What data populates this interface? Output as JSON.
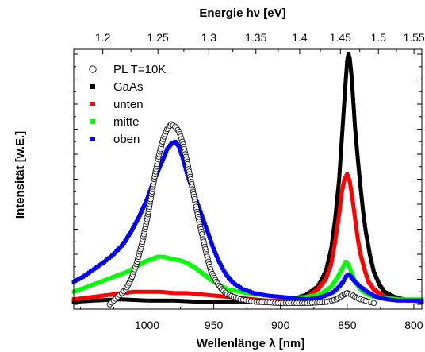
{
  "chart_data": {
    "type": "scatter",
    "xlabel": "Wellenlänge λ [nm]",
    "ylabel": "Intensität [w.E.]",
    "top_axis_label": "Energie hν [eV]",
    "xlim": [
      1055,
      794
    ],
    "x_reversed": true,
    "x_ticks": [
      1000,
      950,
      900,
      850,
      800
    ],
    "x_tick_labels": [
      "1000",
      "950",
      "900",
      "850",
      "800"
    ],
    "top_ticks_ev": [
      1.2,
      1.25,
      1.3,
      1.35,
      1.4,
      1.45,
      1.5,
      1.55
    ],
    "top_tick_labels": [
      "1.2",
      "1.25",
      "1.3",
      "1.35",
      "1.4",
      "1.45",
      "1.5",
      "1.55"
    ],
    "ylim": [
      0,
      1.0
    ],
    "y_tick_labels_shown": false,
    "grid": false,
    "legend_position": "top-left",
    "series": [
      {
        "name": "PL T=10K",
        "marker": "open-circle",
        "color": "#000000",
        "x": [
          1028,
          1022,
          1016,
          1012,
          1008,
          1004,
          1000,
          997,
          994,
          991,
          988,
          985,
          982,
          979,
          976,
          973,
          970,
          967,
          964,
          961,
          958,
          955,
          952,
          948,
          944,
          940,
          935,
          930,
          924,
          918,
          910,
          900,
          880,
          865,
          858,
          855,
          852,
          850,
          847,
          844,
          840,
          830
        ],
        "y": [
          0.0,
          0.03,
          0.06,
          0.1,
          0.16,
          0.24,
          0.34,
          0.43,
          0.52,
          0.6,
          0.66,
          0.7,
          0.72,
          0.71,
          0.69,
          0.64,
          0.57,
          0.49,
          0.41,
          0.33,
          0.26,
          0.19,
          0.13,
          0.09,
          0.06,
          0.04,
          0.03,
          0.02,
          0.015,
          0.01,
          0.008,
          0.005,
          0.005,
          0.01,
          0.02,
          0.03,
          0.04,
          0.045,
          0.04,
          0.03,
          0.02,
          0.005
        ]
      },
      {
        "name": "GaAs",
        "marker": "filled-square",
        "color": "#000000",
        "x": [
          1055,
          1040,
          1020,
          1000,
          980,
          960,
          940,
          920,
          900,
          890,
          880,
          872,
          866,
          862,
          859,
          856,
          854,
          852,
          851,
          850,
          849,
          848,
          847,
          846,
          845,
          844,
          842,
          840,
          838,
          836,
          833,
          830,
          826,
          822,
          815,
          808,
          800,
          794
        ],
        "y": [
          0.01,
          0.015,
          0.02,
          0.015,
          0.015,
          0.01,
          0.01,
          0.01,
          0.015,
          0.02,
          0.04,
          0.07,
          0.13,
          0.22,
          0.34,
          0.5,
          0.66,
          0.82,
          0.9,
          0.97,
          1.0,
          0.98,
          0.93,
          0.86,
          0.78,
          0.7,
          0.58,
          0.47,
          0.37,
          0.29,
          0.2,
          0.13,
          0.08,
          0.05,
          0.03,
          0.02,
          0.015,
          0.01
        ]
      },
      {
        "name": "unten",
        "marker": "filled-square",
        "color": "#ff0000",
        "x": [
          1055,
          1040,
          1025,
          1010,
          1000,
          990,
          980,
          970,
          960,
          950,
          940,
          930,
          920,
          910,
          900,
          890,
          880,
          872,
          866,
          862,
          859,
          856,
          854,
          852,
          850,
          848,
          846,
          844,
          842,
          840,
          837,
          834,
          830,
          825,
          820,
          812,
          805,
          800,
          794
        ],
        "y": [
          0.02,
          0.03,
          0.04,
          0.05,
          0.05,
          0.05,
          0.045,
          0.045,
          0.04,
          0.035,
          0.03,
          0.025,
          0.02,
          0.015,
          0.015,
          0.02,
          0.03,
          0.06,
          0.1,
          0.16,
          0.25,
          0.36,
          0.45,
          0.5,
          0.52,
          0.49,
          0.42,
          0.34,
          0.26,
          0.2,
          0.14,
          0.09,
          0.06,
          0.04,
          0.025,
          0.02,
          0.015,
          0.015,
          0.015
        ]
      },
      {
        "name": "mitte",
        "marker": "filled-square",
        "color": "#00ff00",
        "x": [
          1055,
          1045,
          1035,
          1025,
          1015,
          1008,
          1002,
          997,
          992,
          988,
          984,
          980,
          975,
          970,
          965,
          960,
          955,
          950,
          945,
          940,
          930,
          920,
          910,
          900,
          890,
          880,
          870,
          862,
          857,
          853,
          851,
          849,
          847,
          844,
          840,
          835,
          830,
          820,
          810,
          800,
          794
        ],
        "y": [
          0.05,
          0.07,
          0.09,
          0.11,
          0.13,
          0.15,
          0.17,
          0.18,
          0.19,
          0.19,
          0.185,
          0.18,
          0.175,
          0.165,
          0.15,
          0.13,
          0.11,
          0.09,
          0.075,
          0.06,
          0.05,
          0.04,
          0.035,
          0.03,
          0.025,
          0.03,
          0.04,
          0.07,
          0.11,
          0.15,
          0.17,
          0.16,
          0.13,
          0.09,
          0.06,
          0.04,
          0.03,
          0.025,
          0.02,
          0.02,
          0.02
        ]
      },
      {
        "name": "oben",
        "marker": "filled-square",
        "color": "#0000ff",
        "x": [
          1055,
          1048,
          1040,
          1032,
          1025,
          1018,
          1012,
          1006,
          1000,
          996,
          992,
          988,
          985,
          982,
          979,
          976,
          973,
          970,
          966,
          962,
          958,
          954,
          950,
          946,
          942,
          938,
          934,
          928,
          920,
          910,
          900,
          890,
          880,
          872,
          866,
          860,
          856,
          853,
          851,
          849,
          847,
          844,
          840,
          835,
          830,
          825,
          820,
          812,
          804,
          794
        ],
        "y": [
          0.09,
          0.11,
          0.14,
          0.17,
          0.2,
          0.24,
          0.29,
          0.35,
          0.42,
          0.48,
          0.53,
          0.58,
          0.62,
          0.64,
          0.65,
          0.63,
          0.58,
          0.52,
          0.46,
          0.4,
          0.34,
          0.28,
          0.22,
          0.17,
          0.13,
          0.1,
          0.08,
          0.06,
          0.045,
          0.035,
          0.03,
          0.025,
          0.02,
          0.025,
          0.035,
          0.05,
          0.07,
          0.09,
          0.11,
          0.12,
          0.11,
          0.09,
          0.07,
          0.05,
          0.035,
          0.025,
          0.02,
          0.015,
          0.015,
          0.015
        ]
      }
    ]
  }
}
